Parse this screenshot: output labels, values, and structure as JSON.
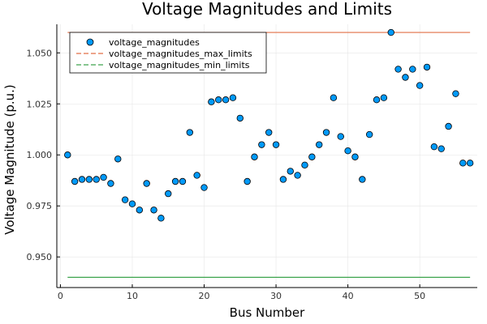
{
  "chart_data": {
    "type": "scatter",
    "title": "Voltage Magnitudes and Limits",
    "xlabel": "Bus Number",
    "ylabel": "Voltage Magnitude (p.u.)",
    "xlim": [
      -0.5,
      58
    ],
    "ylim": [
      0.935,
      1.064
    ],
    "xticks": [
      0,
      10,
      20,
      30,
      40,
      50
    ],
    "yticks": [
      0.95,
      0.975,
      1.0,
      1.025,
      1.05
    ],
    "ytick_labels": [
      "0.950",
      "0.975",
      "1.000",
      "1.025",
      "1.050"
    ],
    "grid": true,
    "legend_position": "top-left",
    "series": [
      {
        "name": "voltage_magnitudes",
        "kind": "scatter",
        "color": "#009AFA",
        "x": [
          1,
          2,
          3,
          4,
          5,
          6,
          7,
          8,
          9,
          10,
          11,
          12,
          13,
          14,
          15,
          16,
          17,
          18,
          19,
          20,
          21,
          22,
          23,
          24,
          25,
          26,
          27,
          28,
          29,
          30,
          31,
          32,
          33,
          34,
          35,
          36,
          37,
          38,
          39,
          40,
          41,
          42,
          43,
          44,
          45,
          46,
          47,
          48,
          49,
          50,
          51,
          52,
          53,
          54,
          55,
          56,
          57
        ],
        "y": [
          1.0,
          0.987,
          0.988,
          0.988,
          0.988,
          0.989,
          0.986,
          0.998,
          0.978,
          0.976,
          0.973,
          0.986,
          0.973,
          0.969,
          0.981,
          0.987,
          0.987,
          1.011,
          0.99,
          0.984,
          1.026,
          1.027,
          1.027,
          1.028,
          1.018,
          0.987,
          0.999,
          1.005,
          1.011,
          1.005,
          0.988,
          0.992,
          0.99,
          0.995,
          0.999,
          1.005,
          1.011,
          1.028,
          1.009,
          1.002,
          0.999,
          0.988,
          1.01,
          1.027,
          1.028,
          1.06,
          1.042,
          1.038,
          1.042,
          1.034,
          1.043,
          1.004,
          1.003,
          1.014,
          1.03,
          0.996,
          0.996
        ]
      },
      {
        "name": "voltage_magnitudes_max_limits",
        "kind": "line",
        "dashed": true,
        "color": "#E26F46",
        "x": [
          1,
          57
        ],
        "y": [
          1.06,
          1.06
        ]
      },
      {
        "name": "voltage_magnitudes_min_limits",
        "kind": "line",
        "dashed": true,
        "color": "#3DA44D",
        "x": [
          1,
          57
        ],
        "y": [
          0.94,
          0.94
        ]
      }
    ]
  }
}
